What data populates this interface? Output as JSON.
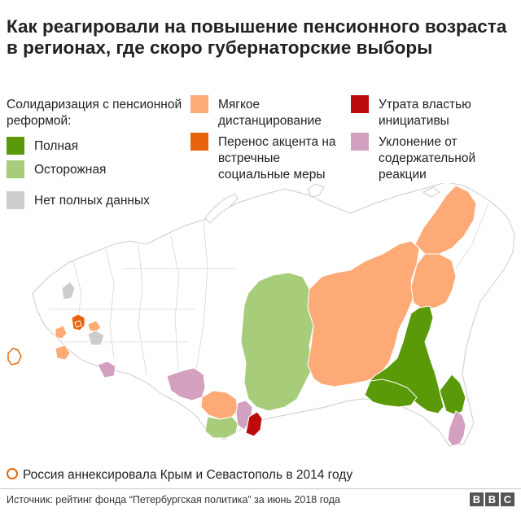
{
  "title": "Как реагировали на повышение пенсионного возраста в регионах, где скоро губернаторские выборы",
  "legend": {
    "heading": "Солидаризация с пенсионной реформой:",
    "items": [
      {
        "key": "full",
        "label": "Полная",
        "color": "#5a9a08"
      },
      {
        "key": "cautious",
        "label": "Осторожная",
        "color": "#a7cc7a"
      },
      {
        "key": "nodata",
        "label": "Нет полных данных",
        "color": "#cccccc"
      },
      {
        "key": "soft",
        "label": "Мягкое дистанцирование",
        "color": "#fdaa77"
      },
      {
        "key": "shift",
        "label": "Перенос акцента на встречные социальные меры",
        "color": "#e9620c"
      },
      {
        "key": "loss",
        "label": "Утрата властью инициативы",
        "color": "#bb0b0b"
      },
      {
        "key": "evasion",
        "label": "Уклонение от содержательной реакции",
        "color": "#d3a0c0"
      }
    ]
  },
  "map_colors": {
    "base_fill": "#ffffff",
    "border": "#cccccc",
    "crimea_outline": "#e06b10"
  },
  "crimea_note": "Россия аннексировала Крым и Севастополь в 2014 году",
  "source": "Источник: рейтинг фонда “Петербургская политика” за июнь 2018 года",
  "brand": [
    "B",
    "B",
    "C"
  ]
}
